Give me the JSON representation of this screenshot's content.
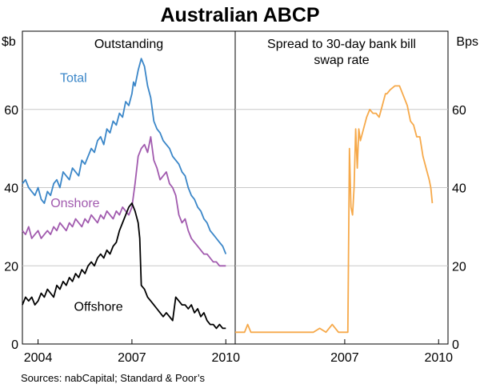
{
  "title": "Australian ABCP",
  "left_unit": "$b",
  "right_unit": "Bps",
  "source": "Sources: nabCapital; Standard & Poor’s",
  "colors": {
    "total": "#3a86c8",
    "onshore": "#a15aae",
    "offshore": "#000000",
    "spread": "#f6a94a"
  },
  "chart_data": [
    {
      "type": "line",
      "title": "Outstanding",
      "ylabel": "$b",
      "ylim": [
        0,
        80
      ],
      "yticks": [
        0,
        20,
        40,
        60
      ],
      "xlim": [
        2003.5,
        2010.3
      ],
      "xticks": [
        "2004",
        "2007",
        "2010"
      ],
      "xtick_values": [
        2004,
        2007,
        2010
      ],
      "series": [
        {
          "name": "Total",
          "x": [
            2003.5,
            2003.6,
            2003.7,
            2003.8,
            2003.9,
            2004.0,
            2004.1,
            2004.2,
            2004.3,
            2004.4,
            2004.5,
            2004.6,
            2004.7,
            2004.8,
            2004.9,
            2005.0,
            2005.1,
            2005.2,
            2005.3,
            2005.4,
            2005.5,
            2005.6,
            2005.7,
            2005.8,
            2005.9,
            2006.0,
            2006.1,
            2006.2,
            2006.3,
            2006.4,
            2006.5,
            2006.6,
            2006.7,
            2006.8,
            2006.9,
            2007.0,
            2007.05,
            2007.1,
            2007.2,
            2007.3,
            2007.4,
            2007.5,
            2007.6,
            2007.7,
            2007.8,
            2007.9,
            2008.0,
            2008.1,
            2008.2,
            2008.3,
            2008.4,
            2008.5,
            2008.6,
            2008.7,
            2008.8,
            2008.9,
            2009.0,
            2009.1,
            2009.2,
            2009.3,
            2009.4,
            2009.5,
            2009.6,
            2009.7,
            2009.8,
            2009.9,
            2010.0
          ],
          "values": [
            41,
            42,
            40,
            39,
            38,
            40,
            37,
            36,
            39,
            38,
            41,
            42,
            40,
            44,
            43,
            42,
            45,
            44,
            43,
            47,
            46,
            48,
            50,
            49,
            52,
            53,
            51,
            55,
            54,
            57,
            56,
            59,
            58,
            62,
            61,
            64,
            67,
            66,
            70,
            73,
            71,
            66,
            63,
            57,
            55,
            54,
            52,
            51,
            50,
            48,
            47,
            46,
            44,
            43,
            40,
            38,
            37,
            35,
            34,
            32,
            31,
            29,
            28,
            27,
            26,
            25,
            23
          ],
          "label": "Total",
          "label_x": 2004.7,
          "label_y": 67
        },
        {
          "name": "Onshore",
          "x": [
            2003.5,
            2003.6,
            2003.7,
            2003.8,
            2003.9,
            2004.0,
            2004.1,
            2004.2,
            2004.3,
            2004.4,
            2004.5,
            2004.6,
            2004.7,
            2004.8,
            2004.9,
            2005.0,
            2005.1,
            2005.2,
            2005.3,
            2005.4,
            2005.5,
            2005.6,
            2005.7,
            2005.8,
            2005.9,
            2006.0,
            2006.1,
            2006.2,
            2006.3,
            2006.4,
            2006.5,
            2006.6,
            2006.7,
            2006.8,
            2006.9,
            2007.0,
            2007.1,
            2007.2,
            2007.3,
            2007.4,
            2007.5,
            2007.6,
            2007.7,
            2007.8,
            2007.9,
            2008.0,
            2008.1,
            2008.2,
            2008.3,
            2008.4,
            2008.5,
            2008.6,
            2008.7,
            2008.8,
            2008.9,
            2009.0,
            2009.1,
            2009.2,
            2009.3,
            2009.4,
            2009.5,
            2009.6,
            2009.7,
            2009.8,
            2009.9,
            2010.0
          ],
          "values": [
            29,
            28,
            30,
            27,
            28,
            29,
            27,
            28,
            29,
            28,
            30,
            29,
            31,
            30,
            29,
            31,
            30,
            32,
            31,
            30,
            32,
            31,
            33,
            32,
            31,
            33,
            32,
            34,
            33,
            32,
            34,
            33,
            35,
            34,
            33,
            35,
            41,
            48,
            50,
            51,
            49,
            53,
            47,
            45,
            42,
            43,
            44,
            41,
            40,
            38,
            33,
            31,
            32,
            29,
            27,
            26,
            25,
            24,
            23,
            23,
            22,
            21,
            21,
            20,
            20,
            20
          ],
          "label": "Onshore",
          "label_x": 2004.4,
          "label_y": 35
        },
        {
          "name": "Offshore",
          "x": [
            2003.5,
            2003.6,
            2003.7,
            2003.8,
            2003.9,
            2004.0,
            2004.1,
            2004.2,
            2004.3,
            2004.4,
            2004.5,
            2004.6,
            2004.7,
            2004.8,
            2004.9,
            2005.0,
            2005.1,
            2005.2,
            2005.3,
            2005.4,
            2005.5,
            2005.6,
            2005.7,
            2005.8,
            2005.9,
            2006.0,
            2006.1,
            2006.2,
            2006.3,
            2006.4,
            2006.5,
            2006.6,
            2006.7,
            2006.8,
            2006.9,
            2007.0,
            2007.1,
            2007.2,
            2007.25,
            2007.3,
            2007.4,
            2007.5,
            2007.6,
            2007.7,
            2007.8,
            2007.9,
            2008.0,
            2008.1,
            2008.2,
            2008.3,
            2008.4,
            2008.5,
            2008.6,
            2008.7,
            2008.8,
            2008.9,
            2009.0,
            2009.1,
            2009.2,
            2009.3,
            2009.4,
            2009.5,
            2009.6,
            2009.7,
            2009.8,
            2009.9,
            2010.0
          ],
          "values": [
            10,
            12,
            11,
            12,
            10,
            11,
            13,
            12,
            14,
            13,
            12,
            15,
            14,
            16,
            15,
            17,
            16,
            18,
            17,
            19,
            18,
            20,
            21,
            20,
            22,
            23,
            22,
            24,
            23,
            25,
            26,
            29,
            31,
            33,
            35,
            36,
            34,
            31,
            27,
            15,
            14,
            12,
            11,
            10,
            9,
            8,
            7,
            8,
            7,
            6,
            12,
            11,
            10,
            10,
            9,
            10,
            8,
            9,
            7,
            8,
            6,
            5,
            5,
            4,
            5,
            4,
            4
          ],
          "label": "Offshore",
          "label_x": 2005.15,
          "label_y": 8.5
        }
      ]
    },
    {
      "type": "line",
      "title": "Spread to 30-day bank bill swap rate",
      "title_lines": [
        "Spread to 30-day bank bill",
        "swap rate"
      ],
      "ylabel": "Bps",
      "ylim": [
        0,
        80
      ],
      "yticks": [
        0,
        20,
        40,
        60
      ],
      "xlim": [
        2003.5,
        2010.3
      ],
      "xticks": [
        "2007",
        "2010"
      ],
      "xtick_values": [
        2007,
        2010
      ],
      "series": [
        {
          "name": "",
          "x": [
            2003.5,
            2003.8,
            2003.9,
            2004.0,
            2004.3,
            2004.6,
            2004.9,
            2005.2,
            2005.5,
            2005.8,
            2006.0,
            2006.2,
            2006.4,
            2006.6,
            2006.8,
            2007.0,
            2007.1,
            2007.15,
            2007.2,
            2007.25,
            2007.3,
            2007.35,
            2007.4,
            2007.45,
            2007.5,
            2007.6,
            2007.7,
            2007.8,
            2007.9,
            2008.0,
            2008.1,
            2008.2,
            2008.3,
            2008.35,
            2008.45,
            2008.6,
            2008.75,
            2008.9,
            2009.0,
            2009.1,
            2009.2,
            2009.3,
            2009.4,
            2009.5,
            2009.6,
            2009.7,
            2009.75,
            2009.8
          ],
          "values": [
            3,
            3,
            5,
            3,
            3,
            3,
            3,
            3,
            3,
            3,
            3,
            4,
            3,
            5,
            3,
            3,
            3,
            50,
            35,
            33,
            40,
            55,
            45,
            55,
            52,
            55,
            58,
            60,
            59,
            59,
            58,
            61,
            64,
            64,
            65,
            66,
            66,
            63,
            61,
            57,
            56,
            53,
            53,
            48,
            45,
            42,
            40,
            36
          ]
        }
      ]
    }
  ]
}
